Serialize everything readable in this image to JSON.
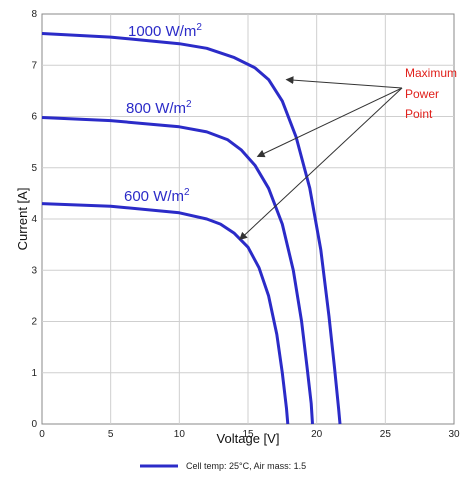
{
  "chart_data": {
    "type": "line",
    "title": "",
    "xlabel": "Voltage [V]",
    "ylabel": "Current [A]",
    "xlim": [
      0,
      30
    ],
    "ylim": [
      0,
      8
    ],
    "x_ticks": [
      "0",
      "5",
      "10",
      "15",
      "20",
      "25",
      "30"
    ],
    "y_ticks": [
      "0",
      "1",
      "2",
      "3",
      "4",
      "5",
      "6",
      "7",
      "8"
    ],
    "grid": true,
    "legend_position": "bottom",
    "legend_label": "Cell temp: 25°C, Air mass: 1.5",
    "series_color": "#2b2bc8",
    "annotation_color": "#e0201b",
    "series": [
      {
        "name": "1000 W/m²",
        "label_base": "1000 W/m",
        "label_sup": "2",
        "points": [
          [
            0,
            7.62
          ],
          [
            5,
            7.55
          ],
          [
            10,
            7.42
          ],
          [
            12,
            7.33
          ],
          [
            14,
            7.15
          ],
          [
            15.5,
            6.95
          ],
          [
            16.5,
            6.72
          ],
          [
            17.5,
            6.3
          ],
          [
            18.5,
            5.6
          ],
          [
            19.5,
            4.6
          ],
          [
            20.3,
            3.4
          ],
          [
            20.9,
            2.1
          ],
          [
            21.3,
            1.1
          ],
          [
            21.6,
            0.3
          ],
          [
            21.7,
            0
          ]
        ]
      },
      {
        "name": "800 W/m²",
        "label_base": "800 W/m",
        "label_sup": "2",
        "points": [
          [
            0,
            5.98
          ],
          [
            5,
            5.92
          ],
          [
            10,
            5.8
          ],
          [
            12,
            5.7
          ],
          [
            13.5,
            5.55
          ],
          [
            14.5,
            5.35
          ],
          [
            15.5,
            5.05
          ],
          [
            16.5,
            4.6
          ],
          [
            17.5,
            3.9
          ],
          [
            18.3,
            3.0
          ],
          [
            18.9,
            2.0
          ],
          [
            19.3,
            1.1
          ],
          [
            19.6,
            0.4
          ],
          [
            19.7,
            0
          ]
        ]
      },
      {
        "name": "600 W/m²",
        "label_base": "600 W/m",
        "label_sup": "2",
        "points": [
          [
            0,
            4.3
          ],
          [
            5,
            4.25
          ],
          [
            10,
            4.12
          ],
          [
            12,
            4.0
          ],
          [
            13,
            3.9
          ],
          [
            14,
            3.72
          ],
          [
            15,
            3.45
          ],
          [
            15.8,
            3.05
          ],
          [
            16.5,
            2.5
          ],
          [
            17.1,
            1.75
          ],
          [
            17.5,
            1.0
          ],
          [
            17.8,
            0.3
          ],
          [
            17.9,
            0
          ]
        ]
      }
    ],
    "annotation": {
      "lines": [
        "Maximum",
        "Power",
        "Point"
      ],
      "targets": [
        [
          17.8,
          6.72
        ],
        [
          15.7,
          5.22
        ],
        [
          14.4,
          3.6
        ]
      ]
    }
  }
}
